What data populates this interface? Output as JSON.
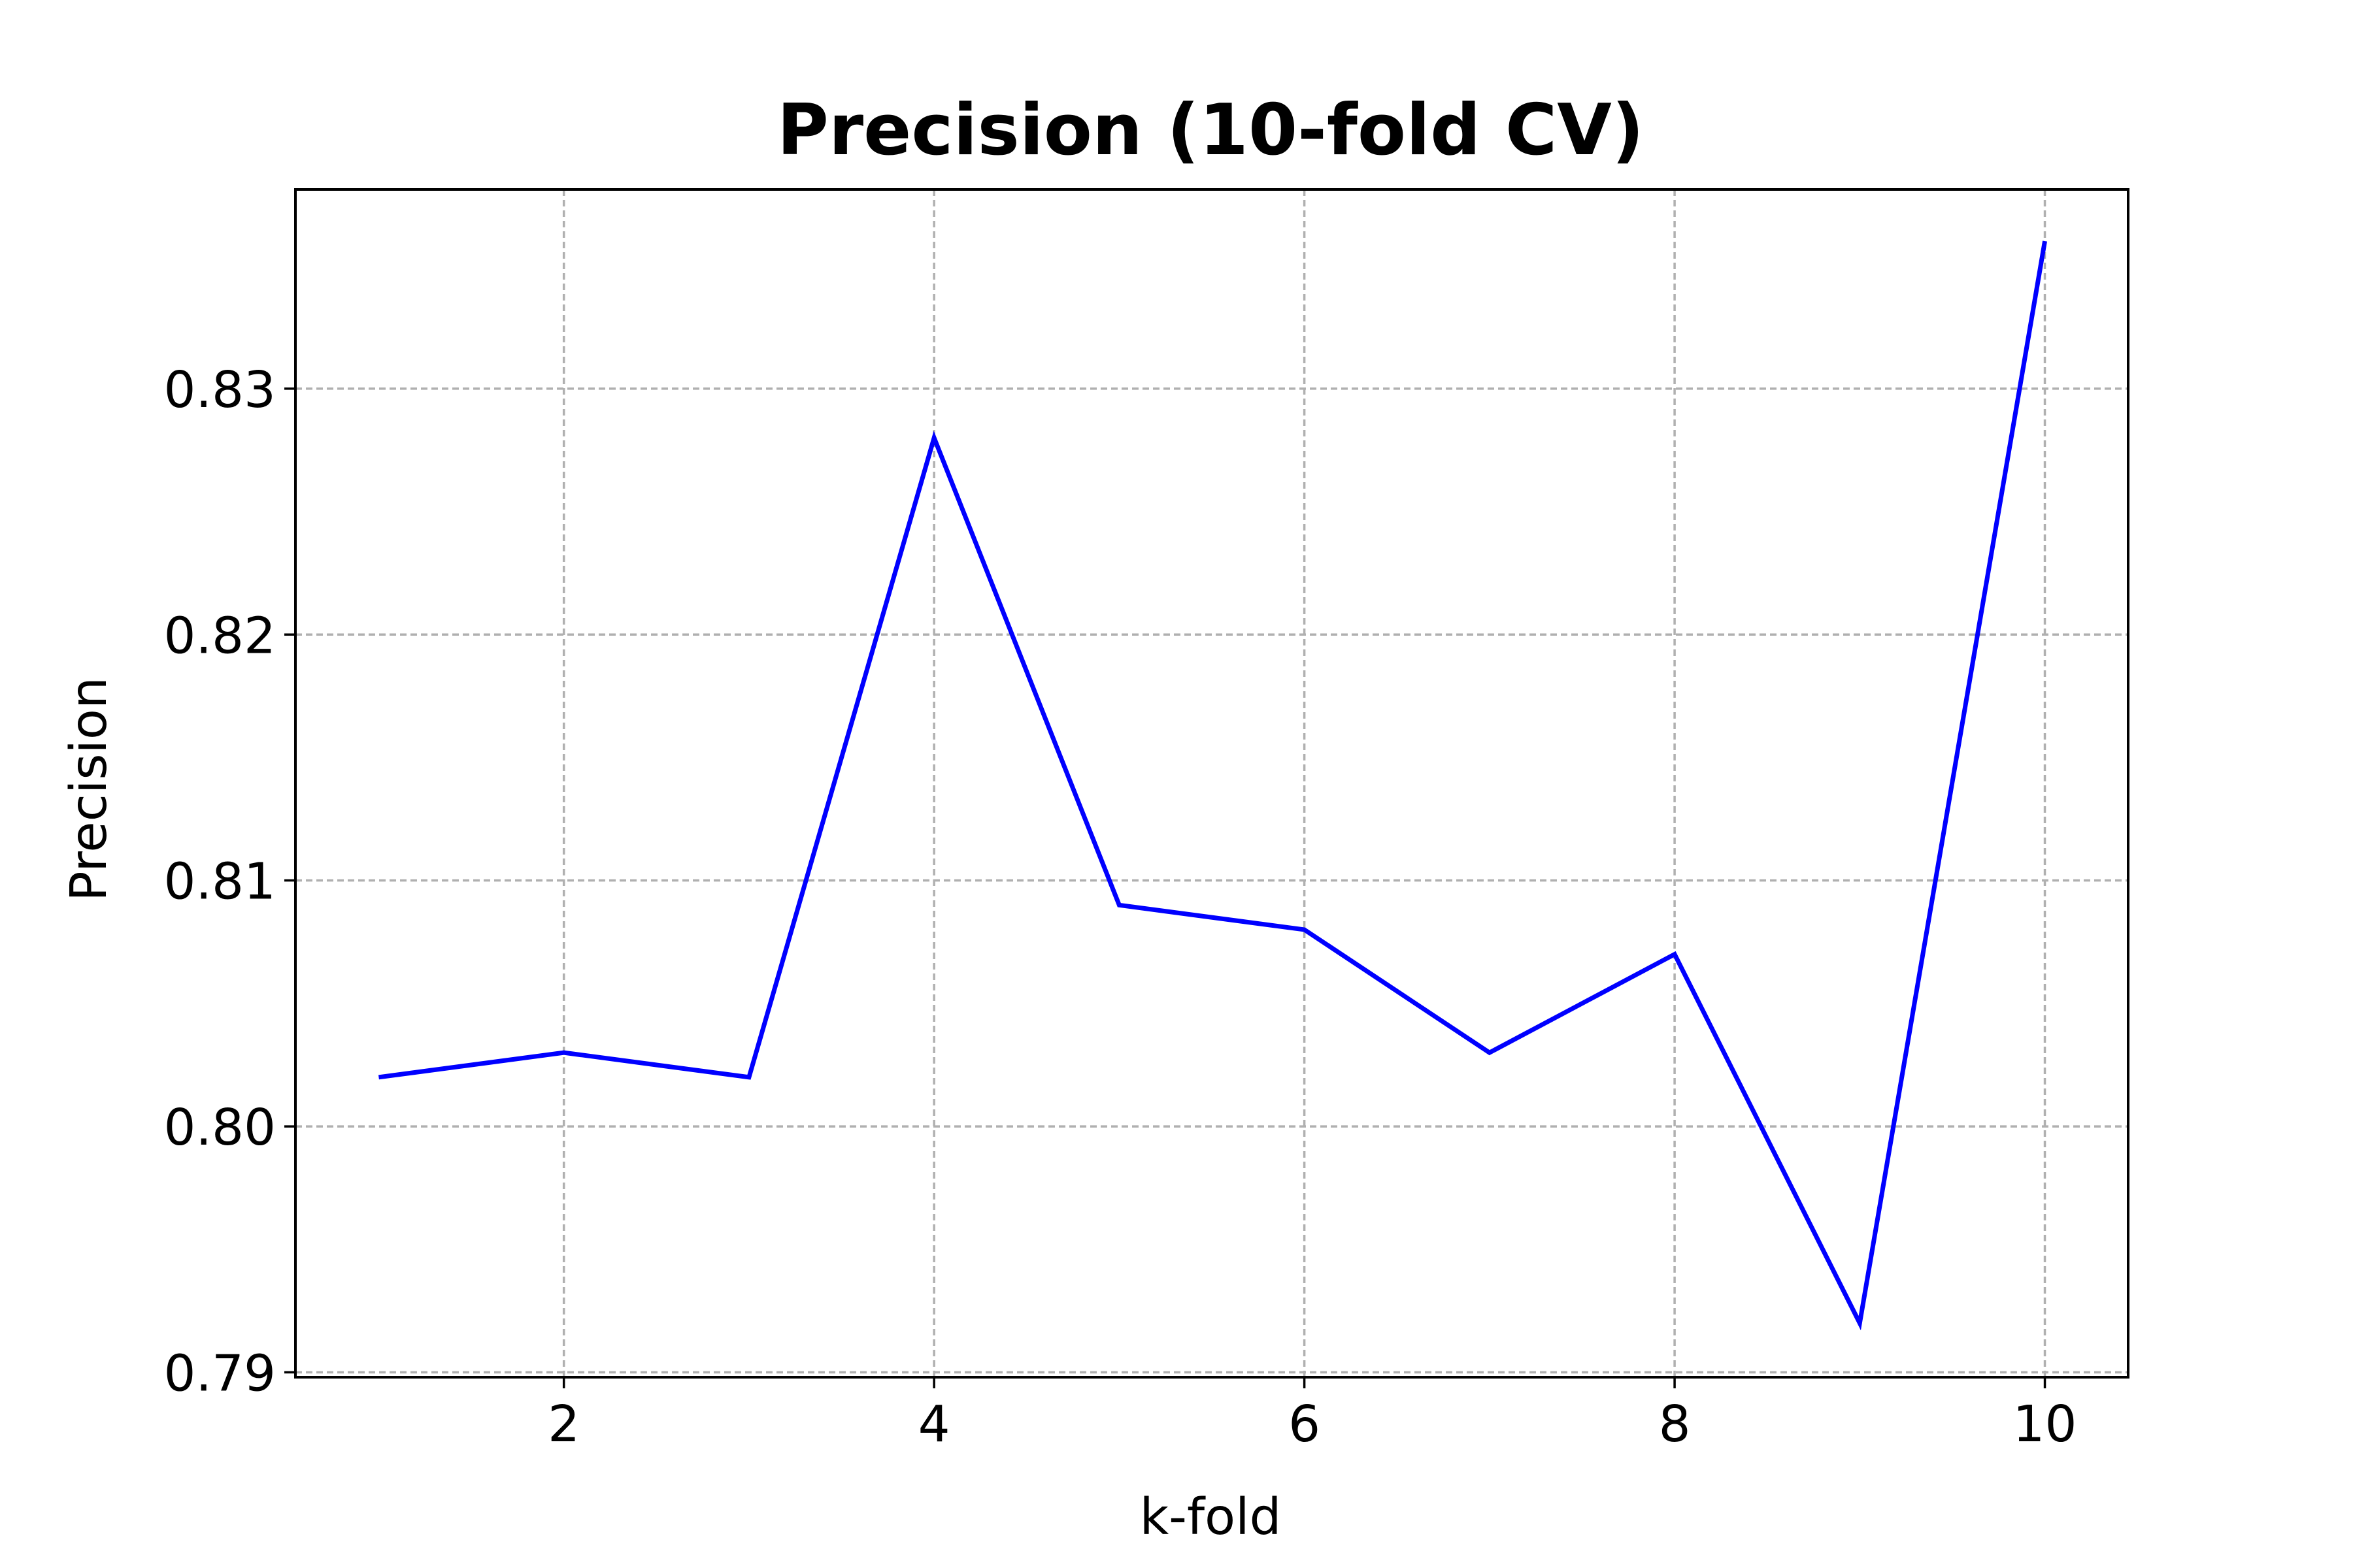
{
  "colors": {
    "series": "#0000ff",
    "grid": "#b0b0b0",
    "frame": "#000000",
    "background": "#ffffff"
  },
  "chart_data": {
    "type": "line",
    "title": "Precision (10-fold CV)",
    "xlabel": "k-fold",
    "ylabel": "Precision",
    "xlim": [
      0.55,
      10.45
    ],
    "ylim": [
      0.7898,
      0.8381
    ],
    "xticks": [
      2,
      4,
      6,
      8,
      10
    ],
    "xtick_labels": [
      "2",
      "4",
      "6",
      "8",
      "10"
    ],
    "yticks": [
      0.79,
      0.8,
      0.81,
      0.82,
      0.83
    ],
    "ytick_labels": [
      "0.79",
      "0.80",
      "0.81",
      "0.82",
      "0.83"
    ],
    "grid": true,
    "legend": "none",
    "series": [
      {
        "x": [
          1,
          2,
          3,
          4,
          5,
          6,
          7,
          8,
          9,
          10
        ],
        "y": [
          0.802,
          0.803,
          0.802,
          0.828,
          0.809,
          0.808,
          0.803,
          0.807,
          0.792,
          0.836
        ]
      }
    ]
  }
}
